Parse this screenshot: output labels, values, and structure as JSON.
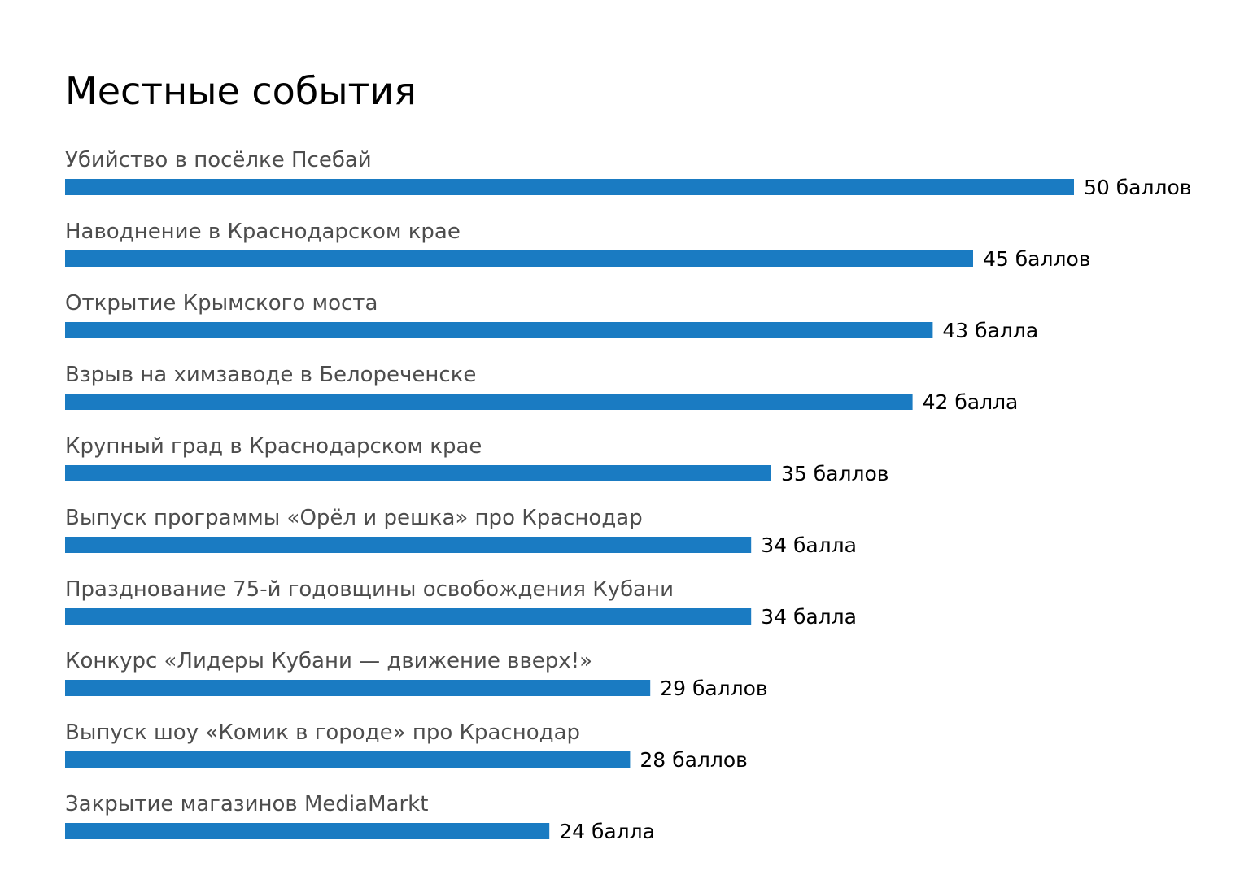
{
  "chart_data": {
    "type": "bar",
    "orientation": "horizontal",
    "title": "Местные события",
    "categories": [
      "Убийство в посёлке Псебай",
      "Наводнение в Краснодарском крае",
      "Открытие Крымского моста",
      "Взрыв на химзаводе в Белореченске",
      "Крупный град в Краснодарском крае",
      "Выпуск программы «Орёл и решка» про Краснодар",
      "Празднование 75-й годовщины освобождения Кубани",
      "Конкурс «Лидеры Кубани — движение вверх!»",
      "Выпуск шоу «Комик в городе» про Краснодар",
      "Закрытие магазинов MediaMarkt"
    ],
    "values": [
      50,
      45,
      43,
      42,
      35,
      34,
      34,
      29,
      28,
      24
    ],
    "value_labels": [
      "50 баллов",
      "45 баллов",
      "43 балла",
      "42 балла",
      "35 баллов",
      "34 балла",
      "34 балла",
      "29 баллов",
      "28 баллов",
      "24 балла"
    ],
    "xlim": [
      0,
      50
    ],
    "grid": false,
    "legend": "none",
    "bar_color": "#1a7bc2"
  }
}
